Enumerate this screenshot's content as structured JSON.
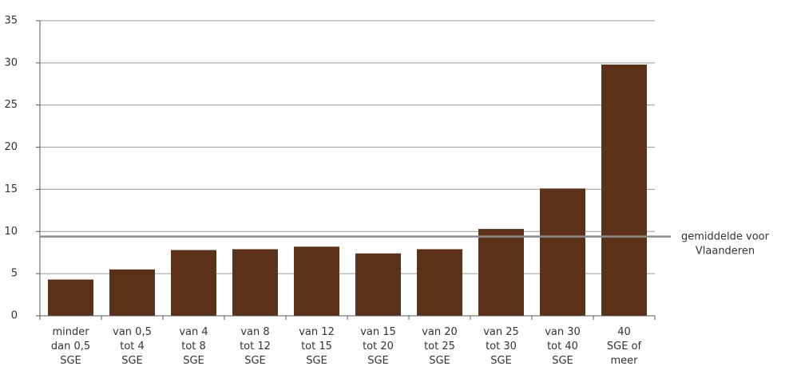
{
  "chart_data": {
    "type": "bar",
    "categories": [
      [
        "minder",
        "dan 0,5",
        "SGE"
      ],
      [
        "van 0,5",
        "tot 4",
        "SGE"
      ],
      [
        "van 4",
        "tot 8",
        "SGE"
      ],
      [
        "van 8",
        "tot 12",
        "SGE"
      ],
      [
        "van 12",
        "tot 15",
        "SGE"
      ],
      [
        "van 15",
        "tot 20",
        "SGE"
      ],
      [
        "van 20",
        "tot 25",
        "SGE"
      ],
      [
        "van 25",
        "tot 30",
        "SGE"
      ],
      [
        "van 30",
        "tot 40",
        "SGE"
      ],
      [
        "40",
        "SGE of",
        "meer"
      ]
    ],
    "values": [
      4.3,
      5.5,
      7.8,
      7.9,
      8.2,
      7.4,
      7.9,
      10.3,
      15.1,
      29.8
    ],
    "color": "#5b3219",
    "ylim": [
      0,
      35
    ],
    "yticks": [
      0,
      5,
      10,
      15,
      20,
      25,
      30,
      35
    ],
    "grid": true,
    "reference_line": {
      "value": 9.4,
      "color": "#8c8c8c",
      "label": [
        "gemiddelde voor",
        "Vlaanderen"
      ]
    }
  }
}
